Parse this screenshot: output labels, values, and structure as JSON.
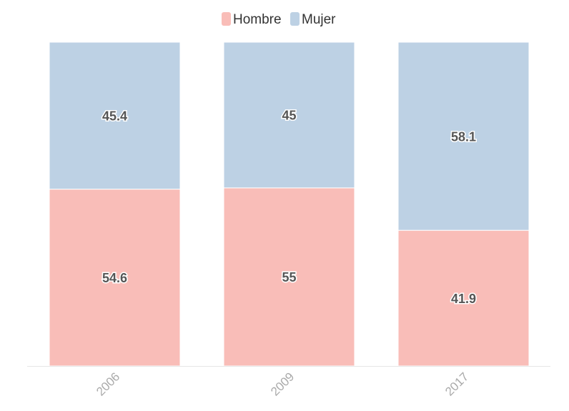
{
  "chart_data": {
    "type": "bar",
    "stacked": true,
    "normalized_percent": true,
    "categories": [
      "2006",
      "2009",
      "2017"
    ],
    "series": [
      {
        "name": "Hombre",
        "values": [
          54.6,
          55,
          41.9
        ],
        "color": "#f9bdb8"
      },
      {
        "name": "Mujer",
        "values": [
          45.4,
          45,
          58.1
        ],
        "color": "#bdd1e4"
      }
    ],
    "ylim": [
      0,
      100
    ],
    "legend_position": "top-center",
    "grid": false,
    "x_tick_rotation": "-45"
  }
}
